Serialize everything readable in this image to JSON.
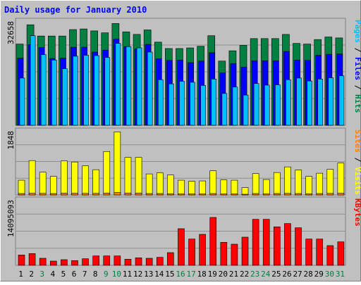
{
  "chart_data": {
    "type": "bar",
    "title": "Daily usage for January 2010",
    "categories": [
      "1",
      "2",
      "3",
      "4",
      "5",
      "6",
      "7",
      "8",
      "9",
      "10",
      "11",
      "12",
      "13",
      "14",
      "15",
      "16",
      "17",
      "18",
      "19",
      "20",
      "21",
      "22",
      "23",
      "24",
      "25",
      "26",
      "27",
      "28",
      "29",
      "30",
      "31"
    ],
    "weekend_days": [
      3,
      9,
      10,
      16,
      17,
      23,
      24,
      30,
      31
    ],
    "panels": [
      {
        "id": "hits",
        "max_label": "32658",
        "ymax": 32658,
        "legend": [
          {
            "text": "Pages",
            "color": "#00c0ff"
          },
          {
            "text": " / ",
            "color": "#000000"
          },
          {
            "text": "Files",
            "color": "#0000ff"
          },
          {
            "text": " / ",
            "color": "#000000"
          },
          {
            "text": "Hits",
            "color": "#008040"
          }
        ],
        "series": [
          {
            "name": "Hits",
            "color": "#008040",
            "values": [
              25300,
              31300,
              27800,
              27800,
              27800,
              29800,
              30000,
              29400,
              28800,
              31700,
              29100,
              28300,
              29700,
              25900,
              23900,
              23900,
              24100,
              24600,
              27900,
              20000,
              23200,
              24900,
              27000,
              27000,
              27000,
              28300,
              25500,
              25300,
              26700,
              27500,
              27200
            ]
          },
          {
            "name": "Files",
            "color": "#0000ff",
            "values": [
              20900,
              25100,
              24200,
              20800,
              20900,
              24300,
              24300,
              22800,
              23400,
              26800,
              24500,
              23800,
              25200,
              20700,
              20200,
              20300,
              19500,
              20000,
              22600,
              16300,
              19200,
              18100,
              20100,
              20100,
              20100,
              23000,
              20300,
              20200,
              21800,
              22100,
              22200
            ]
          },
          {
            "name": "Pages",
            "color": "#00c0ff",
            "values": [
              14700,
              27900,
              22000,
              20300,
              17600,
              21500,
              21800,
              21700,
              21100,
              25500,
              24500,
              24100,
              22800,
              14200,
              12900,
              13700,
              13400,
              12400,
              14400,
              9900,
              11900,
              9400,
              13000,
              12500,
              12600,
              14200,
              14700,
              13800,
              14400,
              14800,
              15400
            ]
          }
        ]
      },
      {
        "id": "visits",
        "max_label": "1848",
        "ymax": 1848,
        "legend": [
          {
            "text": "Sites",
            "color": "#ff8000"
          },
          {
            "text": " / ",
            "color": "#000000"
          },
          {
            "text": "Visits",
            "color": "#ffff00"
          }
        ],
        "series": [
          {
            "name": "Visits",
            "color": "#ffff00",
            "values": [
              420,
              980,
              650,
              530,
              970,
              940,
              830,
              720,
              1240,
              1800,
              1070,
              1070,
              600,
              630,
              570,
              420,
              390,
              400,
              690,
              430,
              420,
              210,
              610,
              440,
              640,
              800,
              710,
              530,
              620,
              730,
              910
            ]
          },
          {
            "name": "Sites",
            "color": "#ff8000",
            "values": [
              40,
              50,
              45,
              40,
              50,
              50,
              45,
              45,
              55,
              70,
              55,
              55,
              40,
              40,
              35,
              30,
              30,
              30,
              40,
              30,
              30,
              20,
              40,
              30,
              40,
              45,
              40,
              35,
              40,
              45,
              50
            ]
          }
        ]
      },
      {
        "id": "kbytes",
        "max_label": "14095093",
        "ymax": 14095093,
        "legend": [
          {
            "text": "KBytes",
            "color": "#ff0000"
          }
        ],
        "series": [
          {
            "name": "KBytes",
            "color": "#ff0000",
            "values": [
              2200000,
              2500000,
              1500000,
              900000,
              1200000,
              1000000,
              1400000,
              2000000,
              2000000,
              2000000,
              1300000,
              1600000,
              1500000,
              1700000,
              2700000,
              7800000,
              5600000,
              6600000,
              10200000,
              4900000,
              4500000,
              6000000,
              9800000,
              9800000,
              8200000,
              8900000,
              8000000,
              5600000,
              5600000,
              4200000,
              5000000
            ]
          }
        ]
      }
    ]
  }
}
